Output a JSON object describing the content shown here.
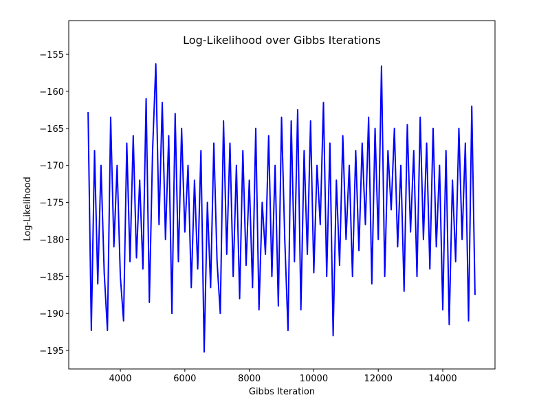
{
  "chart_data": {
    "type": "line",
    "title": "Log-Likelihood over Gibbs Iterations",
    "xlabel": "Gibbs Iteration",
    "ylabel": "Log-Likelihood",
    "color": "#0000ff",
    "x": [
      3000,
      3100,
      3200,
      3300,
      3400,
      3500,
      3600,
      3700,
      3800,
      3900,
      4000,
      4100,
      4200,
      4300,
      4400,
      4500,
      4600,
      4700,
      4800,
      4900,
      5000,
      5100,
      5200,
      5300,
      5400,
      5500,
      5600,
      5700,
      5800,
      5900,
      6000,
      6100,
      6200,
      6300,
      6400,
      6500,
      6600,
      6700,
      6800,
      6900,
      7000,
      7100,
      7200,
      7300,
      7400,
      7500,
      7600,
      7700,
      7800,
      7900,
      8000,
      8100,
      8200,
      8300,
      8400,
      8500,
      8600,
      8700,
      8800,
      8900,
      9000,
      9100,
      9200,
      9300,
      9400,
      9500,
      9600,
      9700,
      9800,
      9900,
      10000,
      10100,
      10200,
      10300,
      10400,
      10500,
      10600,
      10700,
      10800,
      10900,
      11000,
      11100,
      11200,
      11300,
      11400,
      11500,
      11600,
      11700,
      11800,
      11900,
      12000,
      12100,
      12200,
      12300,
      12400,
      12500,
      12600,
      12700,
      12800,
      12900,
      13000,
      13100,
      13200,
      13300,
      13400,
      13500,
      13600,
      13700,
      13800,
      13900,
      14000,
      14100,
      14200,
      14300,
      14400,
      14500,
      14600,
      14700,
      14800,
      14900,
      15000
    ],
    "values": [
      -162.8,
      -192.3,
      -168,
      -186,
      -170,
      -184.5,
      -192.3,
      -163.5,
      -181,
      -170,
      -185,
      -191,
      -167,
      -183,
      -166,
      -182.5,
      -172,
      -184,
      -161,
      -188.5,
      -168,
      -156.3,
      -178,
      -161.5,
      -180,
      -166,
      -190,
      -163,
      -183,
      -165,
      -179,
      -170,
      -186.5,
      -172,
      -184,
      -168,
      -195.2,
      -175,
      -186.5,
      -167,
      -183,
      -190,
      -164,
      -182,
      -167,
      -185,
      -170,
      -188,
      -168,
      -183.5,
      -172,
      -186.5,
      -165,
      -189.5,
      -175,
      -182,
      -166,
      -185,
      -170,
      -189,
      -163.5,
      -180,
      -192.3,
      -164,
      -183,
      -162.5,
      -189.5,
      -168,
      -182,
      -164,
      -184.5,
      -170,
      -178,
      -161.5,
      -185,
      -167,
      -193,
      -172,
      -183.5,
      -166,
      -180,
      -170,
      -185,
      -168,
      -181.5,
      -167,
      -178,
      -163.5,
      -186,
      -165,
      -180,
      -156.6,
      -185,
      -168,
      -176,
      -165,
      -181,
      -170,
      -187,
      -164.5,
      -179,
      -168,
      -185,
      -163.5,
      -180,
      -167,
      -184,
      -165,
      -181,
      -170,
      -189.5,
      -168,
      -191.5,
      -172,
      -183,
      -165,
      -180,
      -167,
      -191,
      -162,
      -187.5
    ],
    "xlim": [
      2400,
      15620
    ],
    "ylim": [
      -197.5,
      -150.45
    ],
    "xticks": [
      4000,
      6000,
      8000,
      10000,
      12000,
      14000
    ],
    "yticks": [
      {
        "value": -195,
        "label": "−195"
      },
      {
        "value": -190,
        "label": "−190"
      },
      {
        "value": -185,
        "label": "−185"
      },
      {
        "value": -180,
        "label": "−180"
      },
      {
        "value": -175,
        "label": "−175"
      },
      {
        "value": -170,
        "label": "−170"
      },
      {
        "value": -165,
        "label": "−165"
      },
      {
        "value": -160,
        "label": "−160"
      },
      {
        "value": -155,
        "label": "−155"
      }
    ]
  }
}
